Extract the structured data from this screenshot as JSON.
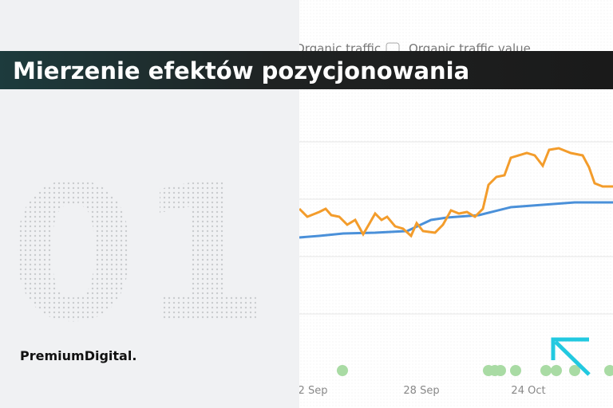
{
  "header": {
    "title": "Mierzenie efektów pozycjonowania"
  },
  "brand": "PremiumDigital.",
  "number": "01",
  "screenshot": {
    "legend": [
      "Organic traffic",
      "Organic traffic value"
    ],
    "x_labels": [
      "2 Sep",
      "28 Sep",
      "24 Oct"
    ]
  }
}
